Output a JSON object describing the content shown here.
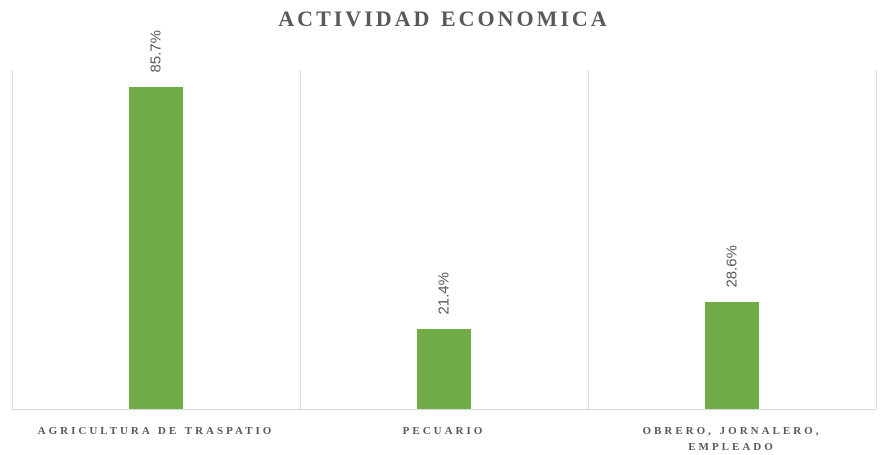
{
  "chart_data": {
    "type": "bar",
    "title": "ACTIVIDAD ECONOMICA",
    "categories": [
      "AGRICULTURA DE TRASPATIO",
      "PECUARIO",
      "OBRERO, JORNALERO, EMPLEADO"
    ],
    "values": [
      85.7,
      21.4,
      28.6
    ],
    "value_labels": [
      "85.7%",
      "21.4%",
      "28.6%"
    ],
    "color": "#70ad47"
  }
}
